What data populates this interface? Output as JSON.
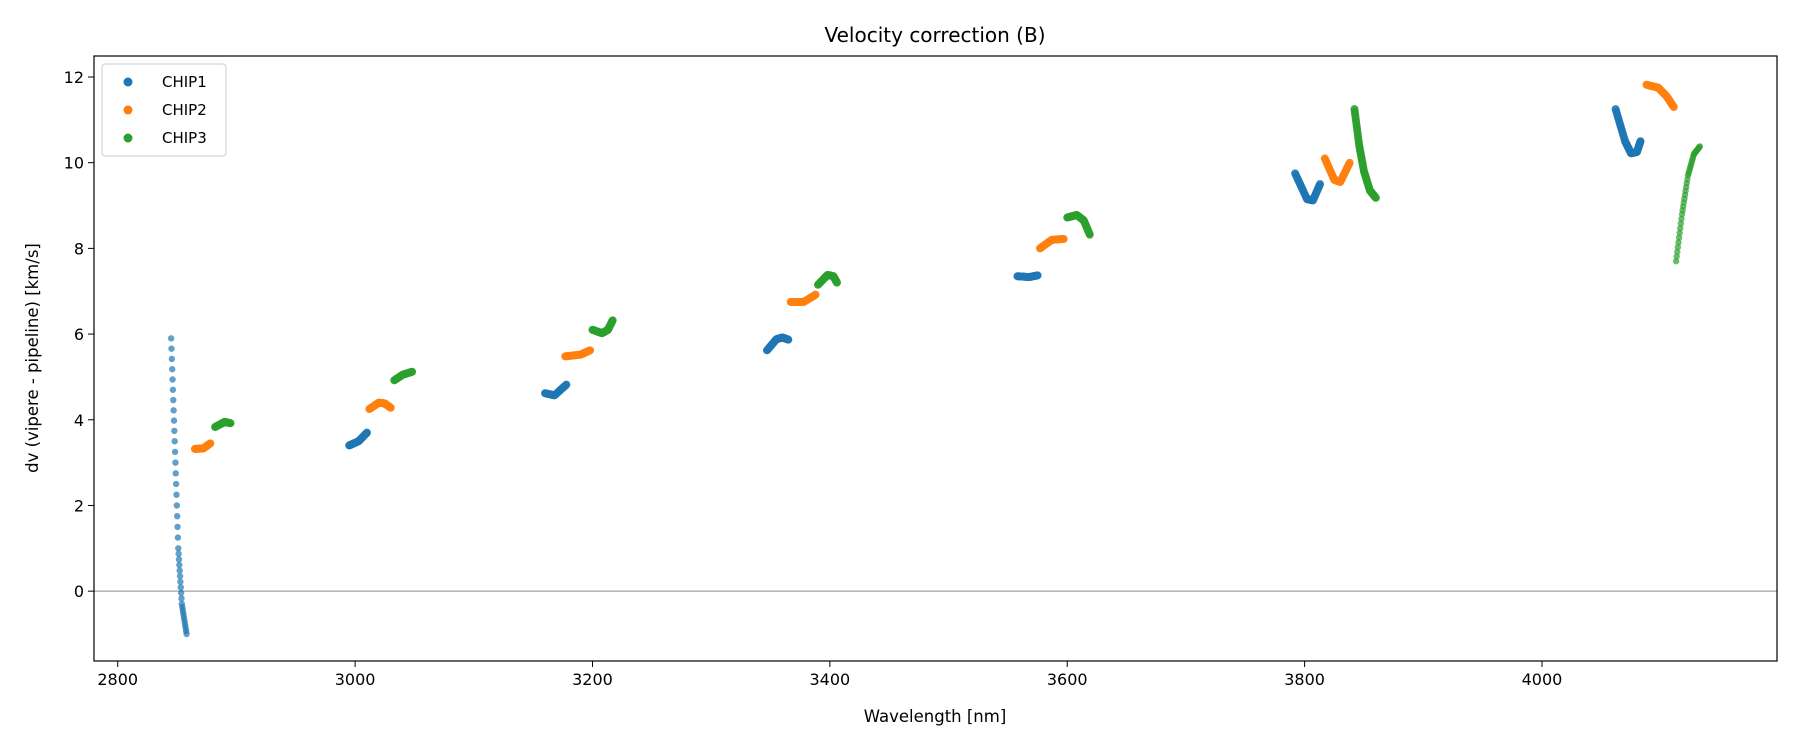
{
  "chart_data": {
    "type": "scatter",
    "title": "Velocity correction (B)",
    "xlabel": "Wavelength [nm]",
    "ylabel": "dv (vipere - pipeline) [km/s]",
    "xlim": [
      2780,
      4198
    ],
    "ylim": [
      -1.63,
      12.49
    ],
    "xticks": [
      2800,
      3000,
      3200,
      3400,
      3600,
      3800,
      4000
    ],
    "yticks": [
      0,
      2,
      4,
      6,
      8,
      10,
      12
    ],
    "grid": false,
    "reference_line_y": 0,
    "legend": "top-left",
    "series": [
      {
        "name": "CHIP1",
        "color": "#1f77b4",
        "segments": [
          [
            [
              2845,
              5.9
            ],
            [
              2848,
              3.5
            ],
            [
              2851,
              1.0
            ],
            [
              2854,
              -0.3
            ],
            [
              2858,
              -1.0
            ]
          ],
          [
            [
              2995,
              3.4
            ],
            [
              3003,
              3.5
            ],
            [
              3010,
              3.7
            ]
          ],
          [
            [
              3160,
              4.62
            ],
            [
              3168,
              4.57
            ],
            [
              3178,
              4.82
            ]
          ],
          [
            [
              3347,
              5.62
            ],
            [
              3355,
              5.88
            ],
            [
              3360,
              5.92
            ],
            [
              3365,
              5.87
            ]
          ],
          [
            [
              3558,
              7.35
            ],
            [
              3568,
              7.33
            ],
            [
              3575,
              7.37
            ]
          ],
          [
            [
              3792,
              9.75
            ],
            [
              3802,
              9.15
            ],
            [
              3807,
              9.12
            ],
            [
              3813,
              9.5
            ]
          ],
          [
            [
              4062,
              11.25
            ],
            [
              4070,
              10.5
            ],
            [
              4075,
              10.22
            ],
            [
              4080,
              10.25
            ],
            [
              4083,
              10.5
            ]
          ]
        ]
      },
      {
        "name": "CHIP2",
        "color": "#ff7f0e",
        "segments": [
          [
            [
              2865,
              3.32
            ],
            [
              2872,
              3.33
            ],
            [
              2878,
              3.45
            ]
          ],
          [
            [
              3012,
              4.25
            ],
            [
              3020,
              4.4
            ],
            [
              3025,
              4.38
            ],
            [
              3030,
              4.28
            ]
          ],
          [
            [
              3177,
              5.48
            ],
            [
              3190,
              5.52
            ],
            [
              3198,
              5.62
            ]
          ],
          [
            [
              3367,
              6.75
            ],
            [
              3378,
              6.75
            ],
            [
              3388,
              6.92
            ]
          ],
          [
            [
              3577,
              8.0
            ],
            [
              3587,
              8.2
            ],
            [
              3597,
              8.22
            ]
          ],
          [
            [
              3817,
              10.1
            ],
            [
              3825,
              9.6
            ],
            [
              3830,
              9.55
            ],
            [
              3838,
              10.0
            ]
          ],
          [
            [
              4088,
              11.82
            ],
            [
              4098,
              11.75
            ],
            [
              4105,
              11.55
            ],
            [
              4111,
              11.3
            ]
          ]
        ]
      },
      {
        "name": "CHIP3",
        "color": "#2ca02c",
        "segments": [
          [
            [
              2882,
              3.83
            ],
            [
              2890,
              3.95
            ],
            [
              2895,
              3.92
            ]
          ],
          [
            [
              3033,
              4.92
            ],
            [
              3040,
              5.05
            ],
            [
              3048,
              5.12
            ]
          ],
          [
            [
              3200,
              6.1
            ],
            [
              3208,
              6.02
            ],
            [
              3213,
              6.1
            ],
            [
              3217,
              6.32
            ]
          ],
          [
            [
              3390,
              7.15
            ],
            [
              3398,
              7.38
            ],
            [
              3403,
              7.35
            ],
            [
              3406,
              7.2
            ]
          ],
          [
            [
              3600,
              8.72
            ],
            [
              3608,
              8.78
            ],
            [
              3614,
              8.65
            ],
            [
              3619,
              8.32
            ]
          ],
          [
            [
              3842,
              11.25
            ],
            [
              3846,
              10.4
            ],
            [
              3850,
              9.8
            ],
            [
              3855,
              9.35
            ],
            [
              3860,
              9.18
            ]
          ],
          [
            [
              4113,
              7.7
            ],
            [
              4118,
              8.8
            ],
            [
              4123,
              9.7
            ],
            [
              4128,
              10.2
            ],
            [
              4133,
              10.38
            ]
          ]
        ]
      }
    ]
  }
}
